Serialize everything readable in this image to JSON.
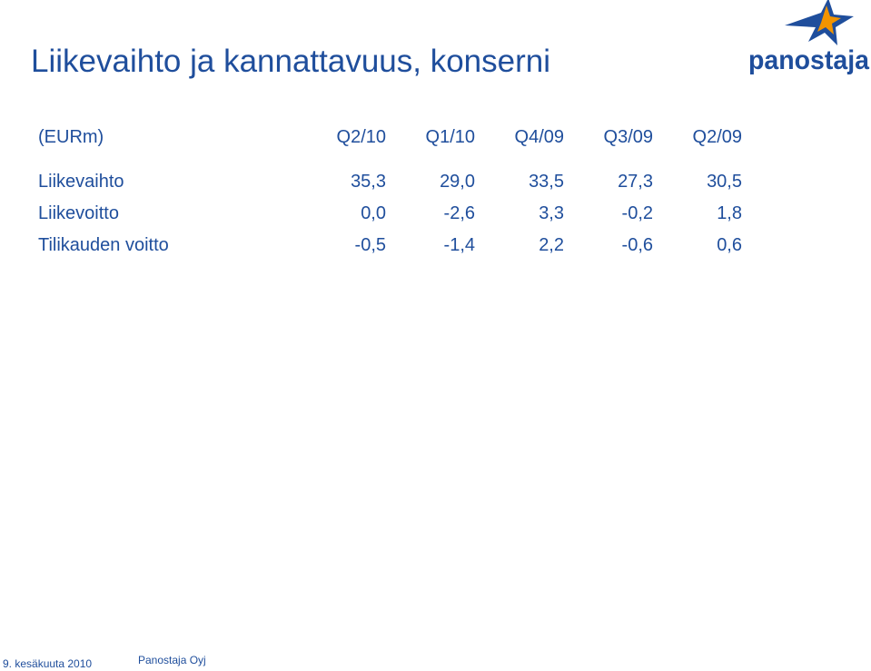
{
  "slide": {
    "title": "Liikevaihto ja kannattavuus, konserni"
  },
  "logo": {
    "text": "panostaja",
    "icon": "star-icon",
    "colors": {
      "text": "#1f4e9c",
      "star_blue": "#1f4e9c",
      "star_orange": "#f29400"
    }
  },
  "table": {
    "unit_label": "(EURm)",
    "columns": [
      "Q2/10",
      "Q1/10",
      "Q4/09",
      "Q3/09",
      "Q2/09"
    ],
    "rows": [
      {
        "label": "Liikevaihto",
        "values": [
          "35,3",
          "29,0",
          "33,5",
          "27,3",
          "30,5"
        ]
      },
      {
        "label": "Liikevoitto",
        "values": [
          "0,0",
          "-2,6",
          "3,3",
          "-0,2",
          "1,8"
        ]
      },
      {
        "label": "Tilikauden voitto",
        "values": [
          "-0,5",
          "-1,4",
          "2,2",
          "-0,6",
          "0,6"
        ]
      }
    ]
  },
  "footer": {
    "date": "9. kesäkuuta 2010",
    "company": "Panostaja Oyj"
  },
  "colors": {
    "primary_text": "#1f4e9c",
    "background": "#ffffff"
  }
}
